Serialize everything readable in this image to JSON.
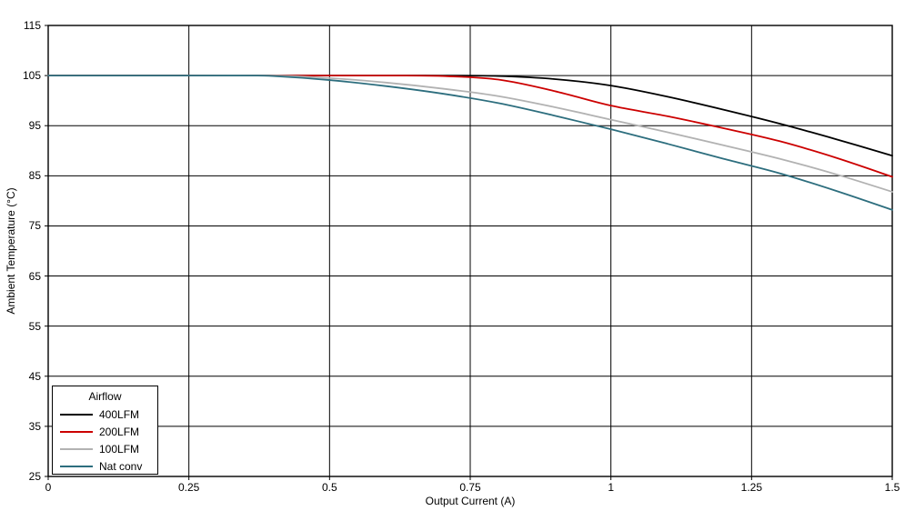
{
  "chart_data": {
    "type": "line",
    "title": "",
    "xlabel": "Output Current (A)",
    "ylabel": "Ambient Temperature (°C)",
    "xlim": [
      0,
      1.5
    ],
    "ylim": [
      25,
      115
    ],
    "xticks": [
      0,
      0.25,
      0.5,
      0.75,
      1,
      1.25,
      1.5
    ],
    "xtick_labels": [
      "0",
      "0.25",
      "0.5",
      "0.75",
      "1",
      "1.25",
      "1.5"
    ],
    "yticks": [
      25,
      35,
      45,
      55,
      65,
      75,
      85,
      95,
      105,
      115
    ],
    "ytick_labels": [
      "25",
      "35",
      "45",
      "55",
      "65",
      "75",
      "85",
      "95",
      "105",
      "115"
    ],
    "grid": true,
    "legend": {
      "title": "Airflow",
      "position": "bottom-left"
    },
    "series": [
      {
        "name": "400LFM",
        "color": "#000000",
        "x": [
          0,
          0.2,
          0.4,
          0.6,
          0.7,
          0.8,
          0.9,
          1.0,
          1.1,
          1.2,
          1.3,
          1.4,
          1.5
        ],
        "y": [
          105,
          105,
          105,
          105,
          105,
          104.9,
          104.3,
          103,
          100.8,
          98.2,
          95.4,
          92.3,
          89
        ]
      },
      {
        "name": "200LFM",
        "color": "#cc0000",
        "x": [
          0,
          0.2,
          0.4,
          0.6,
          0.7,
          0.8,
          0.9,
          1.0,
          1.1,
          1.2,
          1.3,
          1.4,
          1.5
        ],
        "y": [
          105,
          105,
          105,
          105,
          104.9,
          104.2,
          101.9,
          99,
          96.9,
          94.5,
          91.9,
          88.6,
          84.8
        ]
      },
      {
        "name": "100LFM",
        "color": "#b2b2b2",
        "x": [
          0,
          0.2,
          0.4,
          0.5,
          0.6,
          0.7,
          0.8,
          0.9,
          1.0,
          1.1,
          1.2,
          1.3,
          1.4,
          1.5
        ],
        "y": [
          105,
          105,
          105,
          104.5,
          103.6,
          102.4,
          100.9,
          98.7,
          96.2,
          93.7,
          91.1,
          88.4,
          85.3,
          81.8
        ]
      },
      {
        "name": "Nat conv",
        "color": "#2d6e7e",
        "x": [
          0,
          0.2,
          0.35,
          0.4,
          0.5,
          0.6,
          0.7,
          0.8,
          0.9,
          1.0,
          1.1,
          1.2,
          1.3,
          1.4,
          1.5
        ],
        "y": [
          105,
          105,
          105,
          104.9,
          104.1,
          102.9,
          101.4,
          99.5,
          97,
          94.3,
          91.4,
          88.4,
          85.5,
          82,
          78.2
        ]
      }
    ]
  }
}
